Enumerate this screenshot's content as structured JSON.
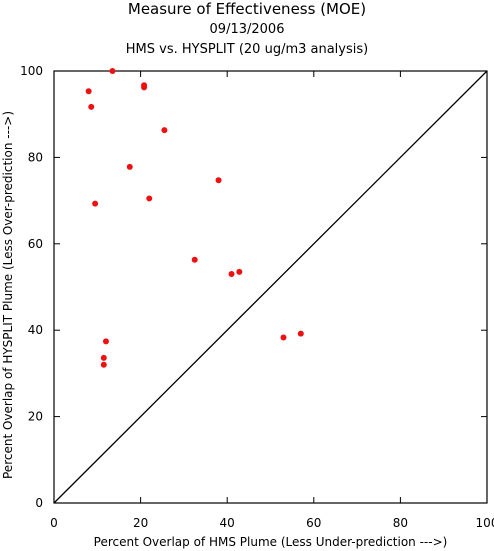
{
  "chart_data": {
    "type": "scatter",
    "title": "Measure of Effectiveness (MOE)",
    "subtitle_date": "09/13/2006",
    "subtitle": "HMS vs. HYSPLIT  (20 ug/m3 analysis)",
    "xlabel": "Percent Overlap of HMS Plume (Less Under-prediction --->)",
    "ylabel": "Percent Overlap of HYSPLIT Plume (Less Over-prediction --->)",
    "xlim": [
      0,
      100
    ],
    "ylim": [
      0,
      100
    ],
    "x_ticks": [
      "0",
      "20",
      "40",
      "60",
      "80",
      "100"
    ],
    "y_ticks": [
      "0",
      "20",
      "40",
      "60",
      "80",
      "100"
    ],
    "grid": false,
    "reference_line": "diagonal",
    "point_color": "#ee1111",
    "points": [
      {
        "x": 13.5,
        "y": 100.0
      },
      {
        "x": 8.0,
        "y": 95.3
      },
      {
        "x": 8.6,
        "y": 91.7
      },
      {
        "x": 20.8,
        "y": 96.7
      },
      {
        "x": 20.8,
        "y": 96.2
      },
      {
        "x": 25.5,
        "y": 86.3
      },
      {
        "x": 17.5,
        "y": 77.8
      },
      {
        "x": 38.0,
        "y": 74.7
      },
      {
        "x": 9.5,
        "y": 69.3
      },
      {
        "x": 22.0,
        "y": 70.5
      },
      {
        "x": 32.5,
        "y": 56.3
      },
      {
        "x": 41.0,
        "y": 53.0
      },
      {
        "x": 42.8,
        "y": 53.5
      },
      {
        "x": 12.0,
        "y": 37.4
      },
      {
        "x": 11.5,
        "y": 33.6
      },
      {
        "x": 11.5,
        "y": 32.0
      },
      {
        "x": 53.0,
        "y": 38.3
      },
      {
        "x": 57.0,
        "y": 39.2
      }
    ]
  }
}
